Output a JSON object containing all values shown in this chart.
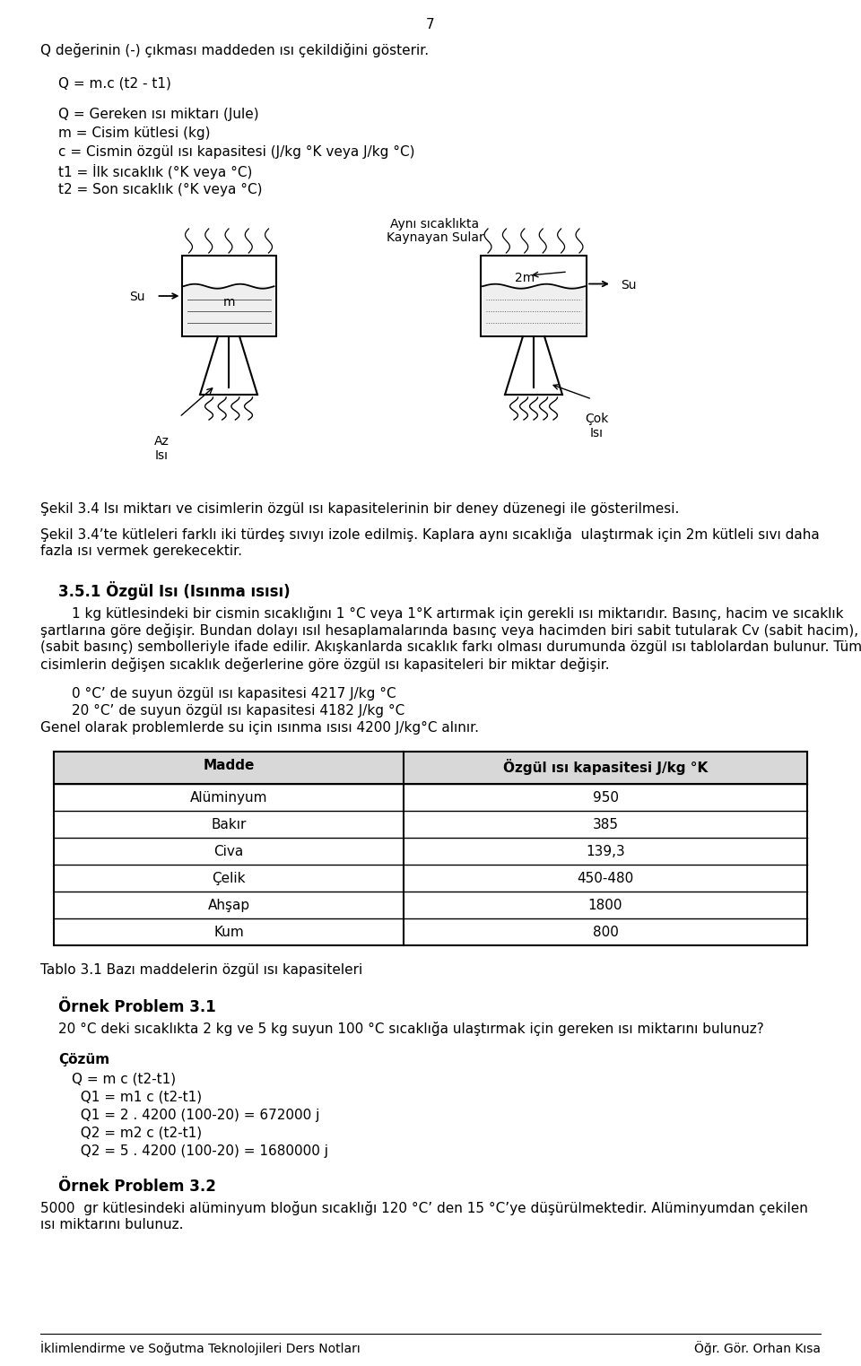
{
  "page_number": "7",
  "bg_color": "#ffffff",
  "text_color": "#000000",
  "line1": "Q değerinin (-) çıkması maddeden ısı çekildiğini gösterir.",
  "line2": "Q = m.c (t2 - t1)",
  "defs": [
    "Q = Gereken ısı miktarı (Jule)",
    "m = Cisim kütlesi (kg)",
    "c = Cismin özgül ısı kapasitesi (J/kg °K veya J/kg °C)",
    "t1 = İlk sıcaklık (°K veya °C)",
    "t2 = Son sıcaklık (°K veya °C)"
  ],
  "fig_label_top_line1": "Aynı sıcaklıkta",
  "fig_label_top_line2": "Kaynayan Sular",
  "fig_label_az_line1": "Az",
  "fig_label_az_line2": "Isı",
  "fig_label_cok_line1": "Çok",
  "fig_label_cok_line2": "Isı",
  "caption1": "Şekil 3.4 Isı miktarı ve cisimlerin özgül ısı kapasitelerinin bir deney düzenegi ile gösterilmesi.",
  "caption2_line1": "Şekil 3.4’te kütleleri farklı iki türdeş sıvıyı izole edilmiş. Kaplara aynı sıcaklığa  ulaştırmak için 2m kütleli sıvı daha",
  "caption2_line2": "fazla ısı vermek gerekecektir.",
  "section_title": "3.5.1 Özgül Isı (Isınma ısısı)",
  "section_text1": "1 kg kütlesindeki bir cismin sıcaklığını 1 °C veya 1°K artırmak için gerekli ısı miktarıdır. Basınç, hacim ve sıcaklık",
  "section_text2": "şartlarına göre değişir. Bundan dolayı ısıl hesaplamalarında basınç veya hacimden biri sabit tutularak Cv (sabit hacim), Cp",
  "section_text3": "(sabit basınç) sembolleriyle ifade edilir. Akışkanlarda sıcaklık farkı olması durumunda özgül ısı tablolardan bulunur. Tüm",
  "section_text4": "cisimlerin değişen sıcaklık değerlerine göre özgül ısı kapasiteleri bir miktar değişir.",
  "water_line1": "0 °C’ de suyun özgül ısı kapasitesi 4217 J/kg °C",
  "water_line2": "20 °C’ de suyun özgül ısı kapasitesi 4182 J/kg °C",
  "water_line3": "Genel olarak problemlerde su için ısınma ısısı 4200 J/kg°C alınır.",
  "table_header_col1": "Madde",
  "table_header_col2": "Özgül ısı kapasitesi J/kg °K",
  "table_rows": [
    [
      "Alüminyum",
      "950"
    ],
    [
      "Bakır",
      "385"
    ],
    [
      "Civa",
      "139,3"
    ],
    [
      "Çelik",
      "450-480"
    ],
    [
      "Ahşap",
      "1800"
    ],
    [
      "Kum",
      "800"
    ]
  ],
  "table_caption": "Tablo 3.1 Bazı maddelerin özgül ısı kapasiteleri",
  "example_title1": "Örnek Problem 3.1",
  "example_text1": "20 °C deki sıcaklıkta 2 kg ve 5 kg suyun 100 °C sıcaklığa ulaştırmak için gereken ısı miktarını bulunuz?",
  "cozum_title": "Çözüm",
  "cozum_lines": [
    "Q = m c (t2-t1)",
    "  Q1 = m1 c (t2-t1)",
    "  Q1 = 2 . 4200 (100-20) = 672000 j",
    "  Q2 = m2 c (t2-t1)",
    "  Q2 = 5 . 4200 (100-20) = 1680000 j"
  ],
  "example_title2": "Örnek Problem 3.2",
  "example_text2_line1": "5000  gr kütlesindeki alüminyum bloğun sıcaklığı 120 °C’ den 15 °C’ye düşürülmektedir. Alüminyumdan çekilen",
  "example_text2_line2": "ısı miktarını bulunuz.",
  "footer_left": "İklimlendirme ve Soğutma Teknolojileri Ders Notları",
  "footer_right": "Öğr. Gör. Orhan Kısa"
}
